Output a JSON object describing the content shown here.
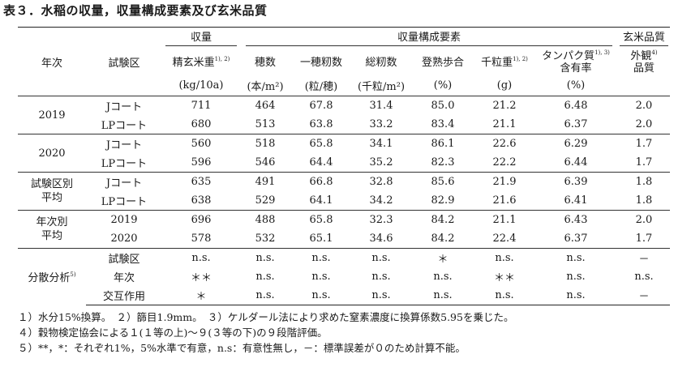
{
  "title": "表３．水稲の収量，収量構成要素及び玄米品質",
  "headers": {
    "year": "年次",
    "plot": "試験区",
    "group_yield": "収量",
    "group_components": "収量構成要素",
    "group_quality": "玄米品質",
    "brown_rice_weight": "精玄米重",
    "brown_rice_weight_note": "1), 2)",
    "panicles": "穂数",
    "grains_per_panicle": "一穂籾数",
    "total_grains": "総籾数",
    "ripening": "登熟歩合",
    "thousand_grain": "千粒重",
    "thousand_grain_note": "1), 2)",
    "protein_line1": "タンパク質",
    "protein_note": "1), 3)",
    "protein_line2": "含有率",
    "appearance_line1": "外観",
    "appearance_note": "4)",
    "appearance_line2": "品質"
  },
  "units": [
    "(kg/10a)",
    "(本/m²)",
    "(粒/穂)",
    "(千粒/m²)",
    "(%)",
    "(g)",
    "(%)"
  ],
  "rows": [
    {
      "group": "2019",
      "plot": "Jコート",
      "v": [
        "711",
        "464",
        "67.8",
        "31.4",
        "85.0",
        "21.2",
        "6.48",
        "2.0"
      ]
    },
    {
      "group": "",
      "plot": "LPコート",
      "v": [
        "680",
        "513",
        "63.8",
        "33.2",
        "83.4",
        "21.1",
        "6.37",
        "2.0"
      ]
    },
    {
      "group": "2020",
      "plot": "Jコート",
      "v": [
        "560",
        "518",
        "65.8",
        "34.1",
        "86.1",
        "22.6",
        "6.29",
        "1.7"
      ]
    },
    {
      "group": "",
      "plot": "LPコート",
      "v": [
        "596",
        "546",
        "64.4",
        "35.2",
        "82.3",
        "22.2",
        "6.44",
        "1.7"
      ]
    },
    {
      "group": "試験区別",
      "group2": "平均",
      "plot": "Jコート",
      "v": [
        "635",
        "491",
        "66.8",
        "32.8",
        "85.6",
        "21.9",
        "6.39",
        "1.8"
      ]
    },
    {
      "group": "",
      "plot": "LPコート",
      "v": [
        "638",
        "529",
        "64.1",
        "34.2",
        "82.9",
        "21.6",
        "6.41",
        "1.8"
      ]
    },
    {
      "group": "年次別",
      "group2": "平均",
      "plot": "2019",
      "v": [
        "696",
        "488",
        "65.8",
        "32.3",
        "84.2",
        "21.1",
        "6.43",
        "2.0"
      ]
    },
    {
      "group": "",
      "plot": "2020",
      "v": [
        "578",
        "532",
        "65.1",
        "34.6",
        "84.2",
        "22.4",
        "6.37",
        "1.7"
      ]
    }
  ],
  "anova": {
    "label": "分散分析",
    "label_note": "5)",
    "rows": [
      {
        "plot": "試験区",
        "v": [
          "n.s.",
          "n.s.",
          "n.s.",
          "n.s.",
          "＊",
          "n.s.",
          "n.s.",
          "－"
        ]
      },
      {
        "plot": "年次",
        "v": [
          "＊＊",
          "n.s.",
          "n.s.",
          "n.s.",
          "n.s.",
          "＊＊",
          "n.s.",
          "n.s."
        ]
      },
      {
        "plot": "交互作用",
        "v": [
          "＊",
          "n.s.",
          "n.s.",
          "n.s.",
          "n.s.",
          "n.s.",
          "n.s.",
          "－"
        ]
      }
    ]
  },
  "notes": [
    "１）水分15%換算。　２）篩目1.9mm。　３）ケルダール法により求めた窒素濃度に換算係数5.95を乗じた。",
    "４）穀物検定協会による１(１等の上)～９(３等の下)の９段階評価。",
    "５）**，*：それぞれ1%，5%水準で有意，n.s：有意性無し，－：標準誤差が０のため計算不能。"
  ]
}
